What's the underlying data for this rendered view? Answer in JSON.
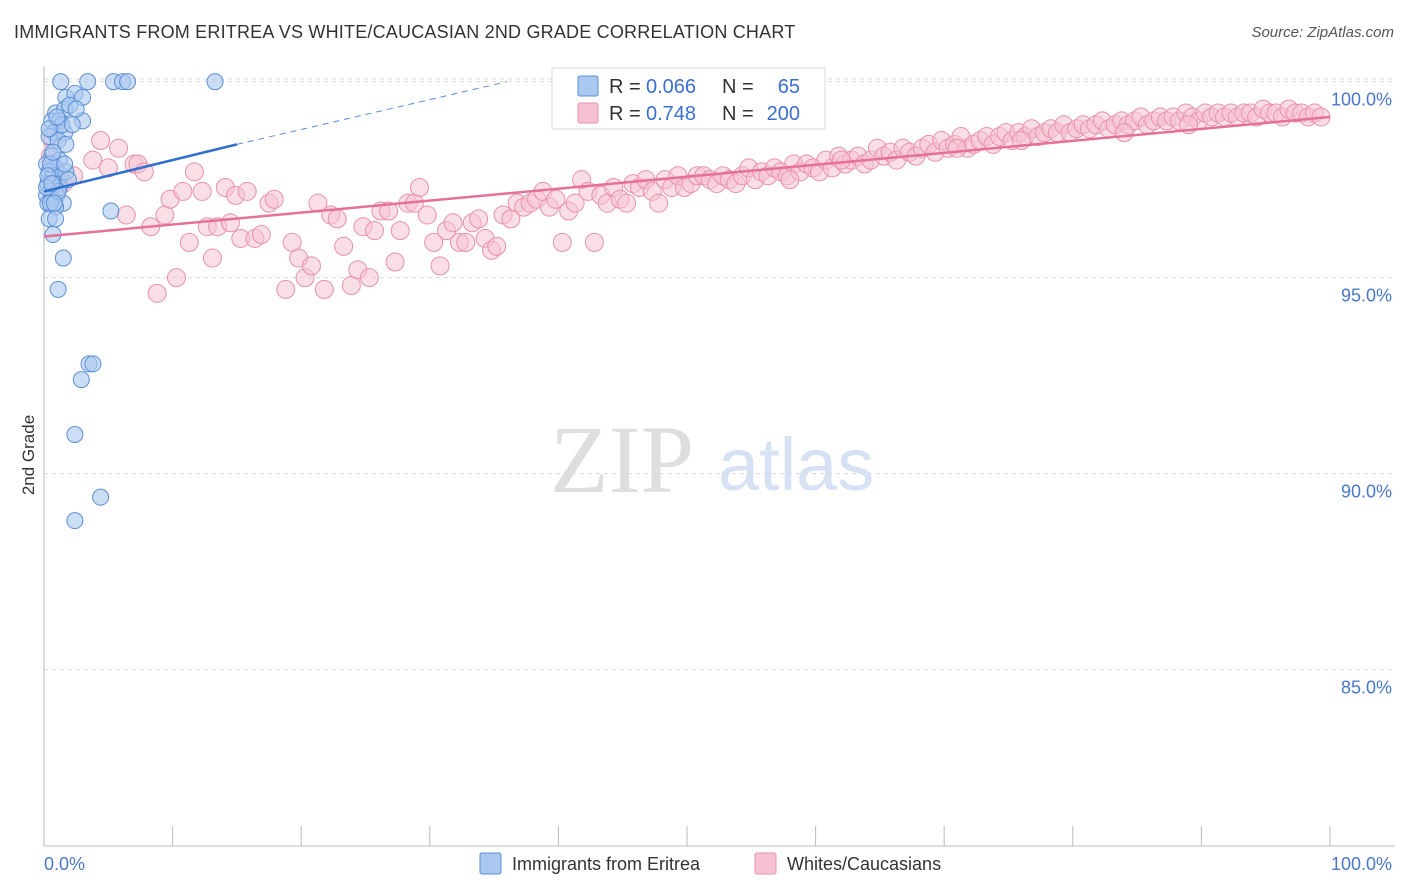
{
  "header": {
    "title": "IMMIGRANTS FROM ERITREA VS WHITE/CAUCASIAN 2ND GRADE CORRELATION CHART",
    "source": "Source: ZipAtlas.com"
  },
  "watermark": {
    "zip": "ZIP",
    "atlas": "atlas"
  },
  "colors": {
    "blue_fill": "#aac8f0",
    "blue_stroke": "#5b8fd6",
    "blue_line": "#2f6fcf",
    "pink_fill": "#f6c2d2",
    "pink_stroke": "#e891ad",
    "pink_line": "#e5709a",
    "grid": "#d8d8d8",
    "tick_text": "#4a78c8"
  },
  "legend": {
    "rows": [
      {
        "r_label": "R =",
        "r_value": "0.066",
        "n_label": "N =",
        "n_value": "65"
      },
      {
        "r_label": "R =",
        "r_value": "0.748",
        "n_label": "N =",
        "n_value": "200"
      }
    ]
  },
  "chart_data": {
    "type": "scatter",
    "title": "IMMIGRANTS FROM ERITREA VS WHITE/CAUCASIAN 2ND GRADE CORRELATION CHART",
    "xlabel": "",
    "ylabel": "2nd Grade",
    "xlim": [
      0,
      100
    ],
    "ylim": [
      80.5,
      100.4
    ],
    "x_tick_labels": [
      "0.0%",
      "100.0%"
    ],
    "y_ticks": [
      85,
      90,
      95,
      100
    ],
    "y_tick_labels": [
      "85.0%",
      "90.0%",
      "95.0%",
      "100.0%"
    ],
    "grid": true,
    "legend_position": "bottom",
    "series": [
      {
        "name": "Immigrants from Eritrea",
        "R": 0.066,
        "N": 65,
        "trend": {
          "x": [
            0,
            15
          ],
          "y": [
            97.2,
            98.4
          ]
        },
        "trend_dashed": {
          "x": [
            15,
            36
          ],
          "y": [
            98.4,
            100.0
          ]
        },
        "points": [
          [
            1.3,
            100.0
          ],
          [
            3.4,
            100.0
          ],
          [
            5.4,
            100.0
          ],
          [
            6.1,
            100.0
          ],
          [
            6.5,
            100.0
          ],
          [
            13.3,
            100.0
          ],
          [
            1.7,
            99.6
          ],
          [
            2.4,
            99.7
          ],
          [
            3.0,
            99.6
          ],
          [
            0.9,
            99.2
          ],
          [
            1.6,
            99.3
          ],
          [
            2.0,
            99.4
          ],
          [
            0.6,
            99.0
          ],
          [
            1.2,
            99.0
          ],
          [
            0.8,
            98.7
          ],
          [
            1.6,
            98.7
          ],
          [
            0.4,
            98.6
          ],
          [
            1.1,
            98.5
          ],
          [
            1.7,
            98.4
          ],
          [
            3.0,
            99.0
          ],
          [
            0.6,
            98.1
          ],
          [
            1.2,
            98.0
          ],
          [
            0.2,
            97.9
          ],
          [
            0.9,
            97.8
          ],
          [
            0.4,
            97.7
          ],
          [
            0.7,
            97.6
          ],
          [
            1.3,
            97.6
          ],
          [
            1.7,
            97.7
          ],
          [
            0.3,
            97.4
          ],
          [
            0.8,
            97.4
          ],
          [
            1.2,
            97.3
          ],
          [
            0.5,
            97.2
          ],
          [
            1.0,
            97.1
          ],
          [
            0.2,
            97.1
          ],
          [
            0.6,
            97.0
          ],
          [
            1.5,
            96.9
          ],
          [
            0.3,
            96.9
          ],
          [
            0.9,
            96.8
          ],
          [
            5.2,
            96.7
          ],
          [
            0.4,
            96.5
          ],
          [
            0.9,
            96.5
          ],
          [
            0.7,
            96.1
          ],
          [
            1.5,
            95.5
          ],
          [
            1.1,
            94.7
          ],
          [
            3.5,
            92.8
          ],
          [
            3.8,
            92.8
          ],
          [
            2.9,
            92.4
          ],
          [
            2.4,
            91.0
          ],
          [
            4.4,
            89.4
          ],
          [
            2.4,
            88.8
          ],
          [
            0.5,
            97.9
          ],
          [
            1.4,
            98.9
          ],
          [
            2.2,
            98.9
          ],
          [
            0.3,
            97.6
          ],
          [
            0.7,
            98.2
          ],
          [
            1.9,
            97.5
          ],
          [
            0.5,
            96.9
          ],
          [
            1.1,
            97.2
          ],
          [
            0.2,
            97.3
          ],
          [
            0.8,
            96.9
          ],
          [
            1.6,
            97.9
          ],
          [
            0.4,
            98.8
          ],
          [
            1.0,
            99.1
          ],
          [
            2.5,
            99.3
          ],
          [
            0.6,
            97.4
          ]
        ]
      },
      {
        "name": "Whites/Caucasians",
        "R": 0.748,
        "N": 200,
        "trend": {
          "x": [
            0,
            100
          ],
          "y": [
            96.05,
            99.1
          ]
        },
        "points": [
          [
            0.7,
            98.5
          ],
          [
            0.5,
            98.1
          ],
          [
            0.6,
            97.9
          ],
          [
            1.5,
            97.4
          ],
          [
            2.3,
            97.6
          ],
          [
            3.8,
            98.0
          ],
          [
            4.4,
            98.5
          ],
          [
            5.0,
            97.8
          ],
          [
            5.8,
            98.3
          ],
          [
            6.4,
            96.6
          ],
          [
            7.0,
            97.9
          ],
          [
            7.3,
            97.9
          ],
          [
            7.8,
            97.7
          ],
          [
            8.3,
            96.3
          ],
          [
            8.8,
            94.6
          ],
          [
            9.4,
            96.6
          ],
          [
            9.8,
            97.0
          ],
          [
            10.3,
            95.0
          ],
          [
            10.8,
            97.2
          ],
          [
            11.3,
            95.9
          ],
          [
            11.7,
            97.7
          ],
          [
            12.3,
            97.2
          ],
          [
            12.7,
            96.3
          ],
          [
            13.1,
            95.5
          ],
          [
            13.5,
            96.3
          ],
          [
            14.1,
            97.3
          ],
          [
            14.5,
            96.4
          ],
          [
            14.9,
            97.1
          ],
          [
            15.3,
            96.0
          ],
          [
            15.8,
            97.2
          ],
          [
            16.4,
            96.0
          ],
          [
            16.9,
            96.1
          ],
          [
            17.5,
            96.9
          ],
          [
            17.9,
            97.0
          ],
          [
            18.8,
            94.7
          ],
          [
            19.3,
            95.9
          ],
          [
            19.8,
            95.5
          ],
          [
            20.3,
            95.0
          ],
          [
            20.8,
            95.3
          ],
          [
            21.3,
            96.9
          ],
          [
            21.8,
            94.7
          ],
          [
            22.3,
            96.6
          ],
          [
            22.8,
            96.5
          ],
          [
            23.3,
            95.8
          ],
          [
            23.9,
            94.8
          ],
          [
            24.4,
            95.2
          ],
          [
            24.8,
            96.3
          ],
          [
            25.3,
            95.0
          ],
          [
            25.7,
            96.2
          ],
          [
            26.2,
            96.7
          ],
          [
            26.8,
            96.7
          ],
          [
            27.3,
            95.4
          ],
          [
            27.7,
            96.2
          ],
          [
            28.3,
            96.9
          ],
          [
            28.8,
            96.9
          ],
          [
            29.2,
            97.3
          ],
          [
            29.8,
            96.6
          ],
          [
            30.3,
            95.9
          ],
          [
            30.8,
            95.3
          ],
          [
            31.3,
            96.2
          ],
          [
            31.8,
            96.4
          ],
          [
            32.3,
            95.9
          ],
          [
            32.8,
            95.9
          ],
          [
            33.3,
            96.4
          ],
          [
            33.8,
            96.5
          ],
          [
            34.3,
            96.0
          ],
          [
            34.8,
            95.7
          ],
          [
            35.2,
            95.8
          ],
          [
            35.7,
            96.6
          ],
          [
            36.3,
            96.5
          ],
          [
            36.8,
            96.9
          ],
          [
            37.3,
            96.8
          ],
          [
            37.8,
            96.9
          ],
          [
            38.3,
            97.0
          ],
          [
            38.8,
            97.2
          ],
          [
            39.3,
            96.8
          ],
          [
            39.8,
            97.0
          ],
          [
            40.3,
            95.9
          ],
          [
            40.8,
            96.7
          ],
          [
            41.3,
            96.9
          ],
          [
            41.8,
            97.5
          ],
          [
            42.3,
            97.2
          ],
          [
            42.8,
            95.9
          ],
          [
            43.3,
            97.1
          ],
          [
            43.8,
            96.9
          ],
          [
            44.3,
            97.3
          ],
          [
            44.8,
            97.0
          ],
          [
            45.3,
            96.9
          ],
          [
            45.8,
            97.4
          ],
          [
            46.3,
            97.3
          ],
          [
            46.8,
            97.5
          ],
          [
            47.3,
            97.2
          ],
          [
            47.8,
            96.9
          ],
          [
            48.3,
            97.5
          ],
          [
            48.8,
            97.3
          ],
          [
            49.3,
            97.6
          ],
          [
            49.8,
            97.3
          ],
          [
            50.3,
            97.4
          ],
          [
            50.8,
            97.6
          ],
          [
            51.3,
            97.6
          ],
          [
            51.8,
            97.5
          ],
          [
            52.3,
            97.4
          ],
          [
            52.8,
            97.6
          ],
          [
            53.3,
            97.5
          ],
          [
            53.8,
            97.4
          ],
          [
            54.3,
            97.6
          ],
          [
            54.8,
            97.8
          ],
          [
            55.3,
            97.5
          ],
          [
            55.8,
            97.7
          ],
          [
            56.3,
            97.6
          ],
          [
            56.8,
            97.8
          ],
          [
            57.3,
            97.7
          ],
          [
            57.8,
            97.6
          ],
          [
            58.3,
            97.9
          ],
          [
            58.8,
            97.7
          ],
          [
            59.3,
            97.9
          ],
          [
            59.8,
            97.8
          ],
          [
            60.3,
            97.7
          ],
          [
            60.8,
            98.0
          ],
          [
            61.3,
            97.8
          ],
          [
            61.8,
            98.1
          ],
          [
            62.3,
            97.9
          ],
          [
            62.8,
            98.0
          ],
          [
            63.3,
            98.1
          ],
          [
            63.8,
            97.9
          ],
          [
            64.3,
            98.0
          ],
          [
            64.8,
            98.3
          ],
          [
            65.3,
            98.1
          ],
          [
            65.8,
            98.2
          ],
          [
            66.3,
            98.0
          ],
          [
            66.8,
            98.3
          ],
          [
            67.3,
            98.2
          ],
          [
            67.8,
            98.1
          ],
          [
            68.3,
            98.3
          ],
          [
            68.8,
            98.4
          ],
          [
            69.3,
            98.2
          ],
          [
            69.8,
            98.5
          ],
          [
            70.3,
            98.3
          ],
          [
            70.8,
            98.4
          ],
          [
            71.3,
            98.6
          ],
          [
            71.8,
            98.3
          ],
          [
            72.3,
            98.4
          ],
          [
            72.8,
            98.5
          ],
          [
            73.3,
            98.6
          ],
          [
            73.8,
            98.4
          ],
          [
            74.3,
            98.6
          ],
          [
            74.8,
            98.7
          ],
          [
            75.3,
            98.5
          ],
          [
            75.8,
            98.7
          ],
          [
            76.3,
            98.6
          ],
          [
            76.8,
            98.8
          ],
          [
            77.3,
            98.6
          ],
          [
            77.8,
            98.7
          ],
          [
            78.3,
            98.8
          ],
          [
            78.8,
            98.7
          ],
          [
            79.3,
            98.9
          ],
          [
            79.8,
            98.7
          ],
          [
            80.3,
            98.8
          ],
          [
            80.8,
            98.9
          ],
          [
            81.3,
            98.8
          ],
          [
            81.8,
            98.9
          ],
          [
            82.3,
            99.0
          ],
          [
            82.8,
            98.8
          ],
          [
            83.3,
            98.9
          ],
          [
            83.8,
            99.0
          ],
          [
            84.3,
            98.9
          ],
          [
            84.8,
            99.0
          ],
          [
            85.3,
            99.1
          ],
          [
            85.8,
            98.9
          ],
          [
            86.3,
            99.0
          ],
          [
            86.8,
            99.1
          ],
          [
            87.3,
            99.0
          ],
          [
            87.8,
            99.1
          ],
          [
            88.3,
            99.0
          ],
          [
            88.8,
            99.2
          ],
          [
            89.3,
            99.1
          ],
          [
            89.8,
            99.0
          ],
          [
            90.3,
            99.2
          ],
          [
            90.8,
            99.1
          ],
          [
            91.3,
            99.2
          ],
          [
            91.8,
            99.1
          ],
          [
            92.3,
            99.2
          ],
          [
            92.8,
            99.1
          ],
          [
            93.3,
            99.2
          ],
          [
            93.8,
            99.2
          ],
          [
            94.3,
            99.1
          ],
          [
            94.8,
            99.3
          ],
          [
            95.3,
            99.2
          ],
          [
            95.8,
            99.2
          ],
          [
            96.3,
            99.1
          ],
          [
            96.8,
            99.3
          ],
          [
            97.3,
            99.2
          ],
          [
            97.8,
            99.2
          ],
          [
            98.3,
            99.1
          ],
          [
            98.8,
            99.2
          ],
          [
            99.3,
            99.1
          ],
          [
            58.0,
            97.5
          ],
          [
            62.0,
            98.0
          ],
          [
            71.0,
            98.3
          ],
          [
            76.0,
            98.5
          ],
          [
            84.0,
            98.7
          ],
          [
            89.0,
            98.9
          ]
        ]
      }
    ]
  },
  "bottom_legend": {
    "items": [
      {
        "label": "Immigrants from Eritrea"
      },
      {
        "label": "Whites/Caucasians"
      }
    ]
  }
}
